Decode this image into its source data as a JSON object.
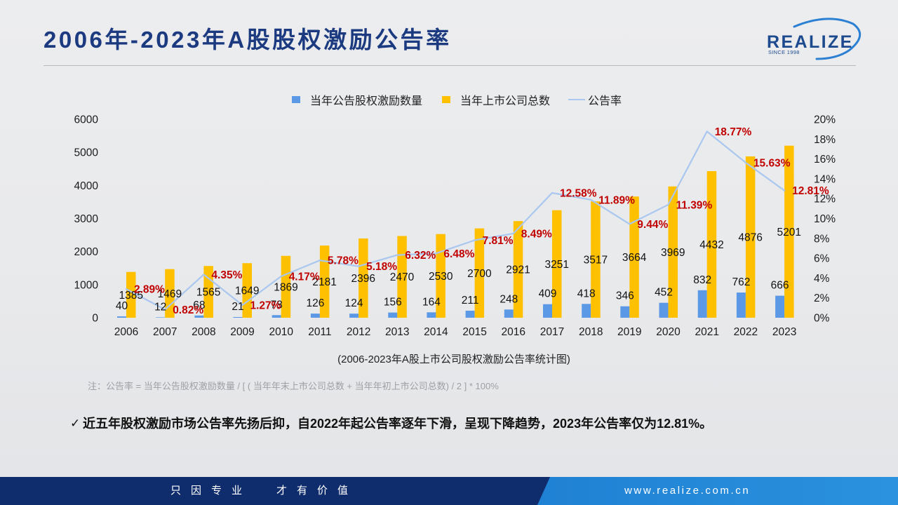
{
  "title": "2006年-2023年A股股权激励公告率",
  "logo": {
    "wordmark": "REALIZE",
    "since": "SINCE 1998"
  },
  "colors": {
    "title": "#1b3a80",
    "logo_text": "#1d4a8e",
    "logo_swoosh": "#2c80d3",
    "note": "#9da0a6",
    "footer_dark": "#0f2c6c",
    "footer_light": "#2a92de"
  },
  "chart_data": {
    "type": "bar",
    "categories": [
      "2006",
      "2007",
      "2008",
      "2009",
      "2010",
      "2011",
      "2012",
      "2013",
      "2014",
      "2015",
      "2016",
      "2017",
      "2018",
      "2019",
      "2020",
      "2021",
      "2022",
      "2023"
    ],
    "series": [
      {
        "name": "当年公告股权激励数量",
        "type": "bar",
        "axis": "left",
        "color": "#5b98e6",
        "values": [
          40,
          12,
          68,
          21,
          78,
          126,
          124,
          156,
          164,
          211,
          248,
          409,
          418,
          346,
          452,
          832,
          762,
          666
        ]
      },
      {
        "name": "当年上市公司总数",
        "type": "bar",
        "axis": "left",
        "color": "#ffc000",
        "values": [
          1385,
          1469,
          1565,
          1649,
          1869,
          2181,
          2396,
          2470,
          2530,
          2700,
          2921,
          3251,
          3517,
          3664,
          3969,
          4432,
          4876,
          5201
        ]
      },
      {
        "name": "公告率",
        "type": "line",
        "axis": "right",
        "color": "#a9c7ef",
        "label_color": "#c00000",
        "unit": "%",
        "values": [
          2.89,
          0.82,
          4.35,
          1.27,
          4.17,
          5.78,
          5.18,
          6.32,
          6.48,
          7.81,
          8.49,
          12.58,
          11.89,
          9.44,
          11.39,
          18.77,
          15.63,
          12.81
        ]
      }
    ],
    "y_left": {
      "range": [
        0,
        6000
      ],
      "ticks": [
        "0",
        "1000",
        "2000",
        "3000",
        "4000",
        "5000",
        "6000"
      ]
    },
    "y_right": {
      "range": [
        0,
        20
      ],
      "ticks": [
        "0%",
        "2%",
        "4%",
        "6%",
        "8%",
        "10%",
        "12%",
        "14%",
        "16%",
        "18%",
        "20%"
      ]
    },
    "legend": "top",
    "grid": false,
    "data_labels": true,
    "caption": "(2006-2023年A股上市公司股权激励公告率统计图)"
  },
  "note": "注：公告率 = 当年公告股权激励数量 / [ ( 当年年末上市公司总数 + 当年年初上市公司总数) / 2 ] * 100%",
  "conclusion": {
    "icon": "check-icon",
    "text": "近五年股权激励市场公告率先扬后抑，自2022年起公告率逐年下滑，呈现下降趋势，2023年公告率仅为12.81%。"
  },
  "footer": {
    "slogan": [
      "只因专业",
      "才有价值"
    ],
    "website": "www.realize.com.cn"
  }
}
